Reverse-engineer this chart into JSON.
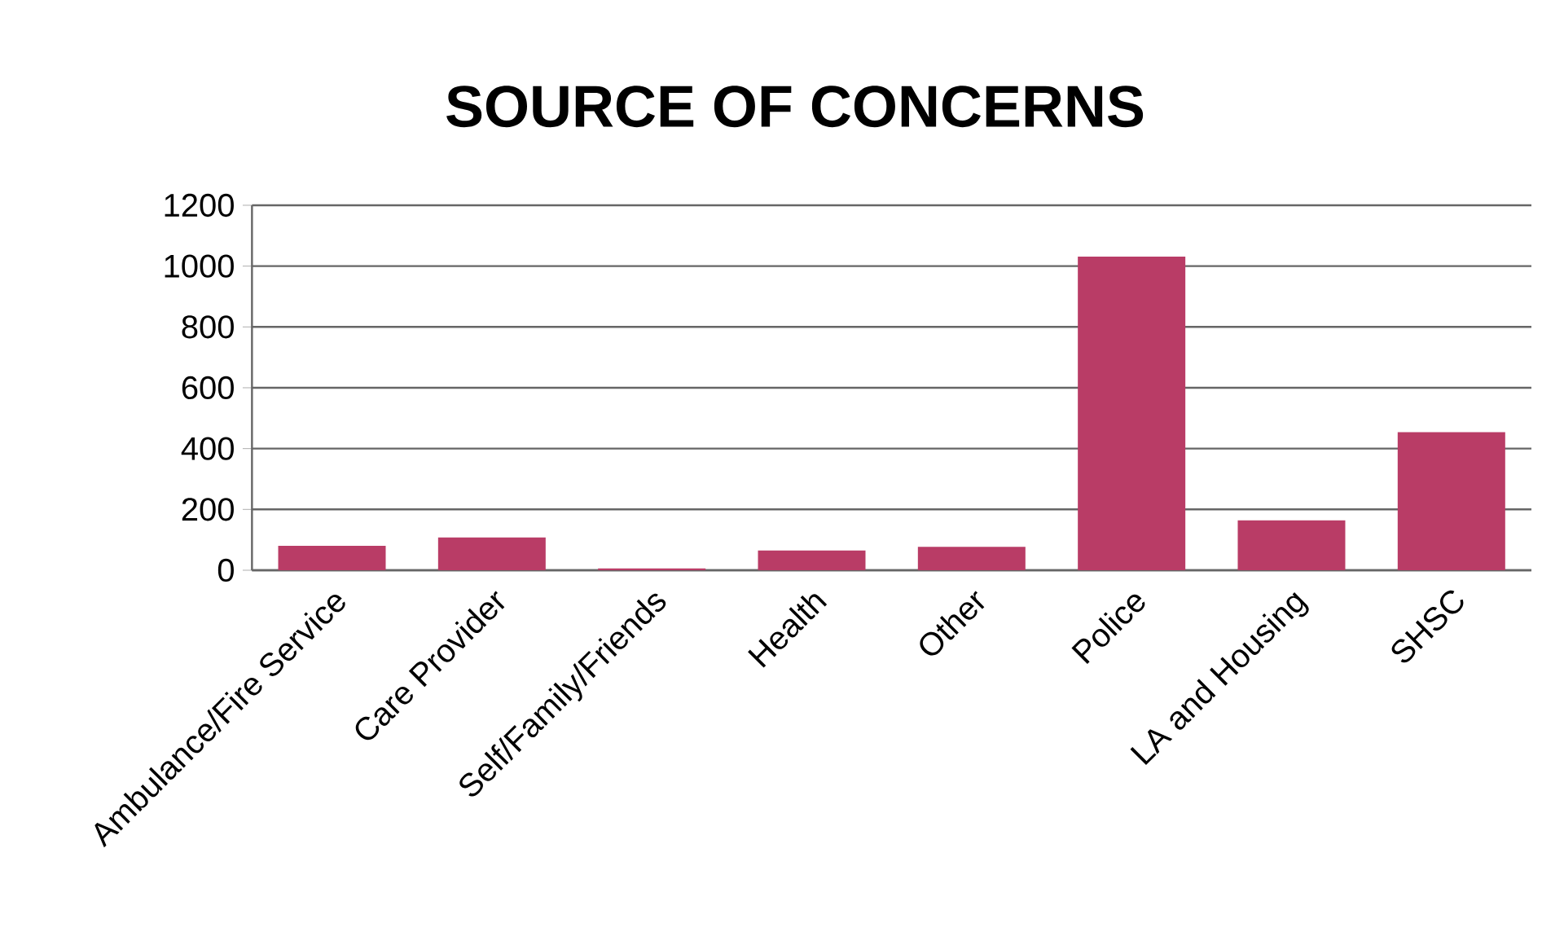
{
  "chart_data": {
    "type": "bar",
    "title": "SOURCE OF CONCERNS",
    "categories": [
      "Ambulance/Fire Service",
      "Care Provider",
      "Self/Family/Friends",
      "Health",
      "Other",
      "Police",
      "LA and Housing",
      "SHSC"
    ],
    "values": [
      80,
      108,
      6,
      65,
      77,
      1031,
      164,
      454
    ],
    "color": "#b93c66",
    "ylim": [
      0,
      1200
    ],
    "yticks": [
      0,
      200,
      400,
      600,
      800,
      1000,
      1200
    ],
    "grid": "y"
  }
}
